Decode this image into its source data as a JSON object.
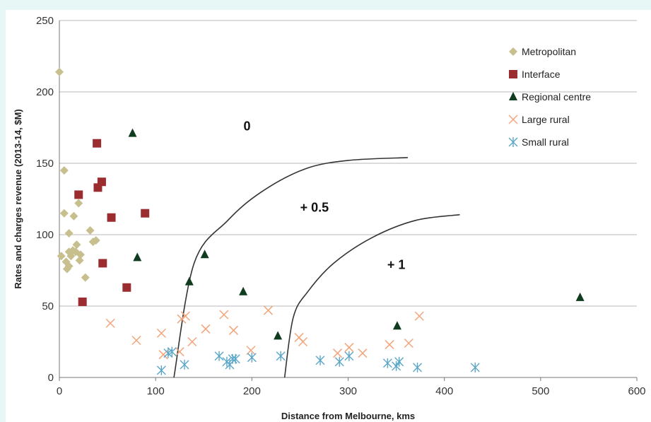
{
  "chart_data": {
    "type": "scatter",
    "xlabel": "Distance from Melbourne, kms",
    "ylabel": "Rates and charges revenue (2013-14, $M)",
    "xlim": [
      0,
      600
    ],
    "ylim": [
      0,
      250
    ],
    "xticks": [
      "0",
      "100",
      "200",
      "300",
      "400",
      "500",
      "600"
    ],
    "yticks": [
      "0",
      "50",
      "100",
      "150",
      "200",
      "250"
    ],
    "grid": "horizontal",
    "legend_position": "top-right",
    "series": [
      {
        "name": "Metropolitan",
        "marker": "diamond",
        "color": "#c8bf8f",
        "points": [
          [
            0,
            214
          ],
          [
            5,
            145
          ],
          [
            5,
            115
          ],
          [
            7,
            81
          ],
          [
            8,
            76
          ],
          [
            10,
            78
          ],
          [
            10,
            101
          ],
          [
            10,
            88
          ],
          [
            12,
            85
          ],
          [
            14,
            89
          ],
          [
            15,
            113
          ],
          [
            17,
            88
          ],
          [
            18,
            93
          ],
          [
            20,
            122
          ],
          [
            21,
            82
          ],
          [
            22,
            86
          ],
          [
            27,
            70
          ],
          [
            32,
            103
          ],
          [
            35,
            95
          ],
          [
            38,
            96
          ],
          [
            2,
            85
          ]
        ]
      },
      {
        "name": "Interface",
        "marker": "square",
        "color": "#9b2d30",
        "points": [
          [
            20,
            128
          ],
          [
            24,
            53
          ],
          [
            39,
            164
          ],
          [
            40,
            133
          ],
          [
            44,
            137
          ],
          [
            45,
            80
          ],
          [
            54,
            112
          ],
          [
            70,
            63
          ],
          [
            89,
            115
          ]
        ]
      },
      {
        "name": "Regional centre",
        "marker": "triangle",
        "color": "#0f3b1f",
        "points": [
          [
            76,
            171
          ],
          [
            81,
            84
          ],
          [
            135,
            67
          ],
          [
            151,
            86
          ],
          [
            191,
            60
          ],
          [
            227,
            29
          ],
          [
            351,
            36
          ],
          [
            541,
            56
          ]
        ]
      },
      {
        "name": "Large rural",
        "marker": "x",
        "color": "#f2a47a",
        "points": [
          [
            53,
            38
          ],
          [
            80,
            26
          ],
          [
            106,
            31
          ],
          [
            108,
            16
          ],
          [
            125,
            18
          ],
          [
            127,
            41
          ],
          [
            131,
            43
          ],
          [
            138,
            25
          ],
          [
            152,
            34
          ],
          [
            171,
            44
          ],
          [
            181,
            33
          ],
          [
            199,
            19
          ],
          [
            217,
            47
          ],
          [
            249,
            28
          ],
          [
            253,
            25
          ],
          [
            289,
            17
          ],
          [
            301,
            21
          ],
          [
            315,
            17
          ],
          [
            343,
            23
          ],
          [
            363,
            24
          ],
          [
            374,
            43
          ]
        ]
      },
      {
        "name": "Small rural",
        "marker": "asterisk",
        "color": "#5aa6c8",
        "points": [
          [
            106,
            5
          ],
          [
            113,
            17
          ],
          [
            117,
            18
          ],
          [
            130,
            9
          ],
          [
            166,
            15
          ],
          [
            174,
            11
          ],
          [
            177,
            9
          ],
          [
            180,
            13
          ],
          [
            183,
            13
          ],
          [
            200,
            14
          ],
          [
            230,
            15
          ],
          [
            271,
            12
          ],
          [
            291,
            11
          ],
          [
            301,
            15
          ],
          [
            341,
            10
          ],
          [
            350,
            8
          ],
          [
            353,
            11
          ],
          [
            372,
            7
          ],
          [
            432,
            7
          ]
        ]
      }
    ],
    "annotations": [
      {
        "label": "0",
        "x": 195,
        "y": 173
      },
      {
        "label": "+ 0.5",
        "x": 265,
        "y": 116
      },
      {
        "label": "+ 1",
        "x": 350,
        "y": 76
      }
    ],
    "contours": [
      {
        "label": "+ 0.5",
        "points": [
          [
            119,
            0
          ],
          [
            140,
            80
          ],
          [
            175,
            110
          ],
          [
            210,
            130
          ],
          [
            255,
            146
          ],
          [
            300,
            152
          ],
          [
            362,
            154
          ]
        ]
      },
      {
        "label": "+ 1",
        "points": [
          [
            234,
            0
          ],
          [
            243,
            42
          ],
          [
            258,
            60
          ],
          [
            285,
            80
          ],
          [
            325,
            98
          ],
          [
            370,
            110
          ],
          [
            416,
            114
          ]
        ]
      }
    ]
  }
}
